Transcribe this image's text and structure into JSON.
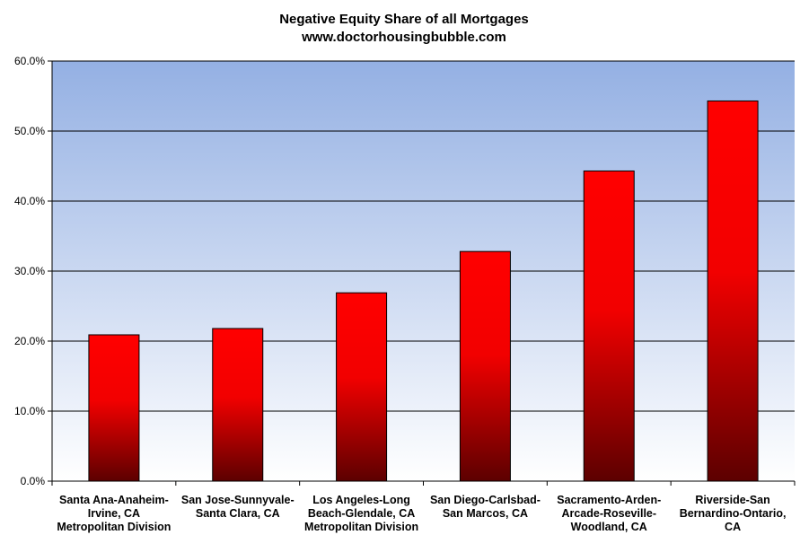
{
  "chart_data": {
    "type": "bar",
    "title": "Negative Equity Share of all Mortgages",
    "subtitle": "www.doctorhousingbubble.com",
    "xlabel": "",
    "ylabel": "",
    "ylim": [
      0,
      60
    ],
    "yticks": [
      "0.0%",
      "10.0%",
      "20.0%",
      "30.0%",
      "40.0%",
      "50.0%",
      "60.0%"
    ],
    "grid": true,
    "legend": "none",
    "categories": [
      [
        "Santa Ana-Anaheim-",
        "Irvine, CA",
        "Metropolitan Division"
      ],
      [
        "San Jose-Sunnyvale-",
        "Santa Clara,  CA"
      ],
      [
        "Los Angeles-Long",
        "Beach-Glendale,  CA",
        "Metropolitan Division"
      ],
      [
        "San Diego-Carlsbad-",
        "San Marcos,  CA"
      ],
      [
        "Sacramento-Arden-",
        "Arcade-Roseville-",
        "Woodland, CA"
      ],
      [
        "Riverside-San",
        "Bernardino-Ontario,",
        "CA"
      ]
    ],
    "values": [
      20.9,
      21.8,
      26.9,
      32.8,
      44.3,
      54.3
    ],
    "colors": {
      "plot_top": "#94b0e3",
      "plot_bottom": "#ffffff",
      "bar_top": "#ff0000",
      "bar_mid": "#f20000",
      "bar_bottom": "#5c0000",
      "gridline": "#000000"
    }
  }
}
